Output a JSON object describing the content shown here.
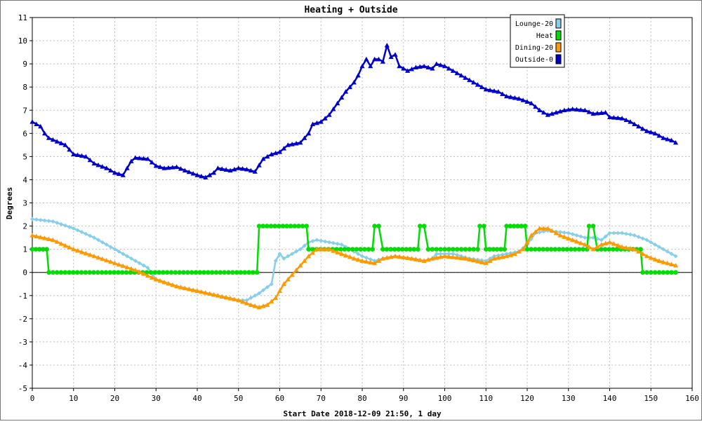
{
  "chart_data": {
    "type": "line",
    "title": "Heating + Outside",
    "xlabel": "Start Date 2018-12-09 21:50, 1 day",
    "ylabel": "Degrees",
    "xlim": [
      0,
      160
    ],
    "ylim": [
      -5,
      11
    ],
    "x_ticks": [
      0,
      10,
      20,
      30,
      40,
      50,
      60,
      70,
      80,
      90,
      100,
      110,
      120,
      130,
      140,
      150,
      160
    ],
    "y_ticks": [
      -5,
      -4,
      -3,
      -2,
      -1,
      0,
      1,
      2,
      3,
      4,
      5,
      6,
      7,
      8,
      9,
      10,
      11
    ],
    "grid": true,
    "legend_position": "top-right",
    "series": [
      {
        "name": "Lounge-20",
        "color": "#87ceeb",
        "marker": "diamond",
        "points": [
          [
            0,
            2.3
          ],
          [
            5,
            2.2
          ],
          [
            10,
            1.9
          ],
          [
            15,
            1.5
          ],
          [
            20,
            1.0
          ],
          [
            25,
            0.5
          ],
          [
            28,
            0.2
          ],
          [
            30,
            -0.3
          ],
          [
            35,
            -0.6
          ],
          [
            40,
            -0.8
          ],
          [
            45,
            -1.0
          ],
          [
            50,
            -1.2
          ],
          [
            52,
            -1.2
          ],
          [
            55,
            -0.9
          ],
          [
            58,
            -0.5
          ],
          [
            59,
            0.5
          ],
          [
            60,
            0.8
          ],
          [
            61,
            0.6
          ],
          [
            63,
            0.8
          ],
          [
            65,
            1.0
          ],
          [
            67,
            1.3
          ],
          [
            69,
            1.4
          ],
          [
            72,
            1.3
          ],
          [
            75,
            1.2
          ],
          [
            78,
            0.9
          ],
          [
            80,
            0.7
          ],
          [
            83,
            0.5
          ],
          [
            85,
            0.6
          ],
          [
            88,
            0.7
          ],
          [
            92,
            0.6
          ],
          [
            95,
            0.5
          ],
          [
            97,
            0.6
          ],
          [
            98,
            0.8
          ],
          [
            102,
            0.8
          ],
          [
            106,
            0.6
          ],
          [
            110,
            0.5
          ],
          [
            112,
            0.7
          ],
          [
            115,
            0.8
          ],
          [
            118,
            0.9
          ],
          [
            120,
            1.2
          ],
          [
            122,
            1.7
          ],
          [
            125,
            1.8
          ],
          [
            130,
            1.7
          ],
          [
            134,
            1.5
          ],
          [
            136,
            1.5
          ],
          [
            138,
            1.4
          ],
          [
            140,
            1.7
          ],
          [
            143,
            1.7
          ],
          [
            146,
            1.6
          ],
          [
            149,
            1.4
          ],
          [
            152,
            1.1
          ],
          [
            156,
            0.7
          ]
        ]
      },
      {
        "name": "Heat",
        "color": "#00dd00",
        "marker": "circle",
        "points": [
          [
            0,
            1
          ],
          [
            3.5,
            1
          ],
          [
            4,
            0
          ],
          [
            54.5,
            0
          ],
          [
            55,
            2
          ],
          [
            66.5,
            2
          ],
          [
            67,
            1
          ],
          [
            82.5,
            1
          ],
          [
            83,
            2
          ],
          [
            84,
            2
          ],
          [
            85,
            1
          ],
          [
            93.5,
            1
          ],
          [
            94,
            2
          ],
          [
            95,
            2
          ],
          [
            96,
            1
          ],
          [
            108,
            1
          ],
          [
            108.5,
            2
          ],
          [
            109.5,
            2
          ],
          [
            110,
            1
          ],
          [
            114.5,
            1
          ],
          [
            115,
            2
          ],
          [
            119.5,
            2
          ],
          [
            120,
            1
          ],
          [
            134.5,
            1
          ],
          [
            135,
            2
          ],
          [
            136,
            2
          ],
          [
            137,
            1
          ],
          [
            147.5,
            1
          ],
          [
            148,
            0
          ],
          [
            156,
            0
          ]
        ]
      },
      {
        "name": "Dining-20",
        "color": "#ff9900",
        "marker": "triangle",
        "points": [
          [
            0,
            1.6
          ],
          [
            5,
            1.4
          ],
          [
            10,
            1.0
          ],
          [
            15,
            0.7
          ],
          [
            20,
            0.4
          ],
          [
            25,
            0.1
          ],
          [
            30,
            -0.3
          ],
          [
            35,
            -0.6
          ],
          [
            40,
            -0.8
          ],
          [
            45,
            -1.0
          ],
          [
            50,
            -1.2
          ],
          [
            53,
            -1.4
          ],
          [
            55,
            -1.5
          ],
          [
            57,
            -1.4
          ],
          [
            59,
            -1.1
          ],
          [
            61,
            -0.5
          ],
          [
            63,
            -0.1
          ],
          [
            65,
            0.3
          ],
          [
            67,
            0.7
          ],
          [
            69,
            1.0
          ],
          [
            72,
            1.0
          ],
          [
            75,
            0.8
          ],
          [
            78,
            0.6
          ],
          [
            80,
            0.5
          ],
          [
            83,
            0.4
          ],
          [
            85,
            0.6
          ],
          [
            88,
            0.7
          ],
          [
            92,
            0.6
          ],
          [
            95,
            0.5
          ],
          [
            97,
            0.6
          ],
          [
            100,
            0.7
          ],
          [
            105,
            0.6
          ],
          [
            110,
            0.4
          ],
          [
            112,
            0.6
          ],
          [
            115,
            0.7
          ],
          [
            117,
            0.8
          ],
          [
            119,
            1.0
          ],
          [
            121,
            1.6
          ],
          [
            123,
            1.9
          ],
          [
            125,
            1.9
          ],
          [
            128,
            1.6
          ],
          [
            131,
            1.4
          ],
          [
            134,
            1.2
          ],
          [
            136,
            1.0
          ],
          [
            138,
            1.2
          ],
          [
            140,
            1.3
          ],
          [
            143,
            1.1
          ],
          [
            146,
            1.0
          ],
          [
            149,
            0.7
          ],
          [
            152,
            0.5
          ],
          [
            156,
            0.3
          ]
        ]
      },
      {
        "name": "Outside-0",
        "color": "#0000cc",
        "marker": "triangle",
        "points": [
          [
            0,
            6.5
          ],
          [
            2,
            6.3
          ],
          [
            3,
            6.0
          ],
          [
            4,
            5.8
          ],
          [
            8,
            5.5
          ],
          [
            10,
            5.1
          ],
          [
            13,
            5.0
          ],
          [
            15,
            4.7
          ],
          [
            18,
            4.5
          ],
          [
            20,
            4.3
          ],
          [
            22,
            4.2
          ],
          [
            24,
            4.8
          ],
          [
            25,
            4.95
          ],
          [
            28,
            4.9
          ],
          [
            30,
            4.6
          ],
          [
            32,
            4.5
          ],
          [
            35,
            4.55
          ],
          [
            37,
            4.4
          ],
          [
            40,
            4.2
          ],
          [
            42,
            4.1
          ],
          [
            44,
            4.3
          ],
          [
            45,
            4.5
          ],
          [
            48,
            4.4
          ],
          [
            50,
            4.5
          ],
          [
            52,
            4.45
          ],
          [
            54,
            4.35
          ],
          [
            56,
            4.9
          ],
          [
            58,
            5.1
          ],
          [
            60,
            5.2
          ],
          [
            62,
            5.5
          ],
          [
            65,
            5.6
          ],
          [
            67,
            6.0
          ],
          [
            68,
            6.4
          ],
          [
            70,
            6.5
          ],
          [
            72,
            6.8
          ],
          [
            74,
            7.3
          ],
          [
            76,
            7.8
          ],
          [
            78,
            8.2
          ],
          [
            79,
            8.5
          ],
          [
            80,
            8.9
          ],
          [
            81,
            9.2
          ],
          [
            82,
            8.9
          ],
          [
            83,
            9.2
          ],
          [
            84,
            9.2
          ],
          [
            85,
            9.1
          ],
          [
            86,
            9.8
          ],
          [
            87,
            9.3
          ],
          [
            88,
            9.4
          ],
          [
            89,
            8.9
          ],
          [
            91,
            8.7
          ],
          [
            93,
            8.85
          ],
          [
            95,
            8.9
          ],
          [
            97,
            8.8
          ],
          [
            98,
            9.0
          ],
          [
            100,
            8.9
          ],
          [
            102,
            8.7
          ],
          [
            104,
            8.5
          ],
          [
            106,
            8.3
          ],
          [
            108,
            8.1
          ],
          [
            110,
            7.9
          ],
          [
            113,
            7.8
          ],
          [
            115,
            7.6
          ],
          [
            118,
            7.5
          ],
          [
            121,
            7.3
          ],
          [
            123,
            7.0
          ],
          [
            125,
            6.8
          ],
          [
            127,
            6.9
          ],
          [
            129,
            7.0
          ],
          [
            131,
            7.05
          ],
          [
            134,
            7.0
          ],
          [
            136,
            6.85
          ],
          [
            139,
            6.9
          ],
          [
            140,
            6.7
          ],
          [
            143,
            6.65
          ],
          [
            145,
            6.5
          ],
          [
            147,
            6.3
          ],
          [
            149,
            6.1
          ],
          [
            151,
            6.0
          ],
          [
            153,
            5.8
          ],
          [
            155,
            5.7
          ],
          [
            156,
            5.6
          ]
        ]
      }
    ]
  }
}
